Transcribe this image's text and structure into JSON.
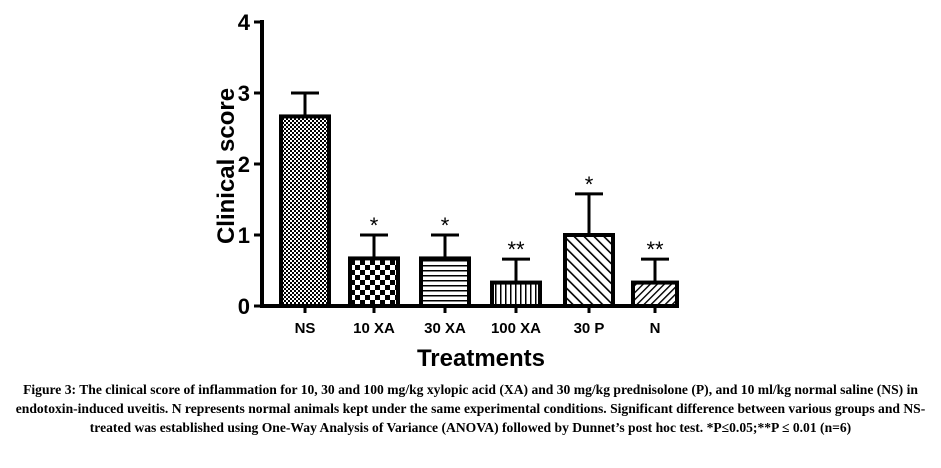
{
  "chart_data": {
    "type": "bar",
    "xlabel": "Treatments",
    "ylabel": "Clinical score",
    "ylim": [
      0,
      4
    ],
    "yticks": [
      "0",
      "1",
      "2",
      "3",
      "4"
    ],
    "categories": [
      "NS",
      "10 XA",
      "30 XA",
      "100 XA",
      "30 P",
      "N"
    ],
    "values": [
      2.67,
      0.67,
      0.67,
      0.33,
      1.0,
      0.33
    ],
    "errors": [
      0.33,
      0.33,
      0.33,
      0.33,
      0.58,
      0.33
    ],
    "significance": [
      "",
      "*",
      "*",
      "**",
      "*",
      "**"
    ],
    "patterns": [
      "dots",
      "checker",
      "hlines",
      "vlines",
      "diag",
      "diag-fine"
    ]
  },
  "caption": "Figure 3: The clinical score of inflammation for 10, 30 and 100 mg/kg xylopic acid (XA) and 30 mg/kg prednisolone (P), and 10 ml/kg normal saline (NS) in endotoxin-induced uveitis. N represents normal animals kept under the same experimental conditions. Significant difference between various groups and NS-treated was established using One-Way Analysis of Variance (ANOVA) followed by Dunnet’s post hoc test. *P≤0.05;**P ≤ 0.01 (n=6)"
}
